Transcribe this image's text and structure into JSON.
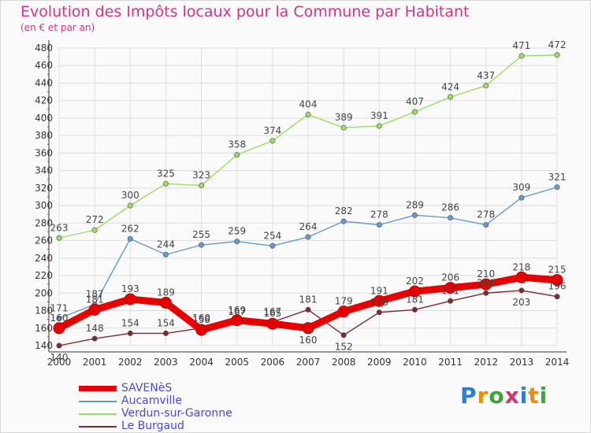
{
  "title": "Evolution des Impôts locaux pour la Commune par Habitant",
  "subtitle": "(en € et par an)",
  "colors": {
    "title": "#d63384",
    "grid": "#dddddd",
    "axis": "#333333",
    "legend_text": "#4a4ad8"
  },
  "chart_data": {
    "type": "line",
    "title": "Evolution des Impôts locaux pour la Commune par Habitant",
    "subtitle": "(en € et par an)",
    "x": [
      "2000",
      "2001",
      "2002",
      "2003",
      "2004",
      "2005",
      "2006",
      "2007",
      "2008",
      "2009",
      "2010",
      "2011",
      "2012",
      "2013",
      "2014"
    ],
    "ylim": [
      140,
      480
    ],
    "yticks": [
      140,
      160,
      180,
      200,
      220,
      240,
      260,
      280,
      300,
      320,
      340,
      360,
      380,
      400,
      420,
      440,
      460,
      480
    ],
    "grid": true,
    "legend_position": "bottom-left",
    "series": [
      {
        "name": "SAVENèS",
        "color": "#e60000",
        "values": [
          160,
          181,
          193,
          189,
          158,
          169,
          165,
          160,
          179,
          191,
          202,
          206,
          210,
          218,
          215
        ],
        "labels": [
          "160",
          "181",
          "193",
          "189",
          "158",
          "169",
          "165",
          "160",
          "179",
          "191",
          "202",
          "206",
          "210",
          "218",
          "215"
        ]
      },
      {
        "name": "Aucamville",
        "color": "#6699cc",
        "values": [
          171,
          187,
          262,
          244,
          255,
          259,
          254,
          264,
          282,
          278,
          289,
          286,
          278,
          309,
          321
        ],
        "labels": [
          "171",
          "187",
          "262",
          "244",
          "255",
          "259",
          "254",
          "264",
          "282",
          "278",
          "289",
          "286",
          "278",
          "309",
          "321"
        ]
      },
      {
        "name": "Verdun-sur-Garonne",
        "color": "#99dd66",
        "values": [
          263,
          272,
          300,
          325,
          323,
          358,
          374,
          404,
          389,
          391,
          407,
          424,
          437,
          471,
          472
        ],
        "labels": [
          "263",
          "272",
          "300",
          "325",
          "323",
          "358",
          "374",
          "404",
          "389",
          "391",
          "407",
          "424",
          "437",
          "471",
          "472"
        ]
      },
      {
        "name": "Le Burgaud",
        "color": "#7a2b2b",
        "values": [
          140,
          148,
          154,
          154,
          160,
          167,
          167,
          181,
          152,
          178,
          181,
          191,
          200,
          203,
          196
        ],
        "labels": [
          "140",
          "148",
          "154",
          "154",
          "160",
          "167",
          "167",
          "181",
          "152",
          "178",
          "181",
          "191",
          "200",
          "203",
          "196"
        ]
      }
    ]
  },
  "logo": {
    "letters": [
      "P",
      "r",
      "o",
      "x",
      "i",
      "t",
      "i"
    ],
    "colors": [
      "#2a7fd4",
      "#f08c00",
      "#3aa63a",
      "#d6336c",
      "#2a7fd4",
      "#f08c00",
      "#3aa63a"
    ]
  }
}
